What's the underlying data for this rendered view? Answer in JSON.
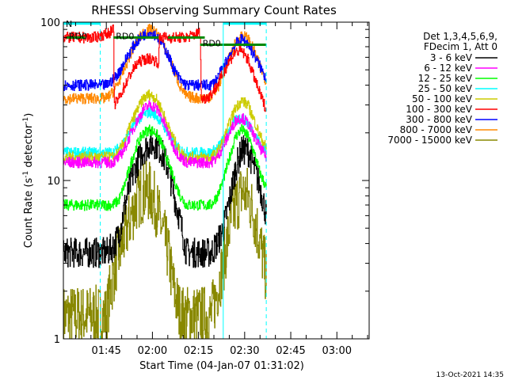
{
  "chart_data": {
    "type": "line",
    "title": "RHESSI Observing Summary Count Rates",
    "xlabel": "Start Time (04-Jan-07 01:31:02)",
    "ylabel_main": "Count Rate (s",
    "ylabel_sup": "-1",
    "ylabel_end": " detector",
    "ylabel_close": ")",
    "yscale": "log",
    "ylim": [
      1,
      100
    ],
    "xlim": [
      "01:31:02",
      "03:10:30"
    ],
    "x_ticks": [
      "01:45",
      "02:00",
      "02:15",
      "02:30",
      "02:45",
      "03:00"
    ],
    "y_ticks": [
      "1",
      "10",
      "100"
    ],
    "timestamp": "13-Oct-2021 14:35",
    "legend": {
      "placement": "right",
      "header": [
        "Det 1,3,4,5,6,9,",
        "FDecim 1, Att 0"
      ]
    },
    "series": [
      {
        "name": "3 - 6 keV",
        "color": "#000000",
        "points": [
          [
            0,
            3.5
          ],
          [
            14,
            3.5
          ],
          [
            16,
            3.8
          ],
          [
            18,
            4.5
          ],
          [
            20,
            7
          ],
          [
            22,
            10
          ],
          [
            24,
            13
          ],
          [
            26,
            15.5
          ],
          [
            28,
            17
          ],
          [
            30,
            17
          ],
          [
            32,
            15
          ],
          [
            34,
            12
          ],
          [
            36,
            8
          ],
          [
            38,
            5.5
          ],
          [
            40,
            3.5
          ],
          [
            48,
            3.5
          ],
          [
            50,
            4
          ],
          [
            52,
            5
          ],
          [
            54,
            7.5
          ],
          [
            56,
            12
          ],
          [
            58,
            15.5
          ],
          [
            60,
            15.5
          ],
          [
            62,
            12
          ],
          [
            64,
            9
          ],
          [
            66,
            6
          ]
        ]
      },
      {
        "name": "6 - 12 keV",
        "color": "#ff00ff",
        "points": [
          [
            0,
            13
          ],
          [
            16,
            13
          ],
          [
            18,
            14
          ],
          [
            20,
            16
          ],
          [
            22,
            20
          ],
          [
            24,
            24
          ],
          [
            26,
            28
          ],
          [
            28,
            30
          ],
          [
            30,
            29
          ],
          [
            32,
            25
          ],
          [
            34,
            20
          ],
          [
            36,
            16
          ],
          [
            38,
            14
          ],
          [
            40,
            13
          ],
          [
            48,
            13
          ],
          [
            50,
            14
          ],
          [
            52,
            16.5
          ],
          [
            54,
            20
          ],
          [
            56,
            24
          ],
          [
            58,
            25
          ],
          [
            60,
            23
          ],
          [
            62,
            19
          ],
          [
            64,
            16
          ],
          [
            66,
            14
          ]
        ]
      },
      {
        "name": "12 - 25 keV",
        "color": "#00ff00",
        "points": [
          [
            0,
            7
          ],
          [
            16,
            7
          ],
          [
            18,
            7.5
          ],
          [
            20,
            9.5
          ],
          [
            22,
            13
          ],
          [
            24,
            17
          ],
          [
            26,
            20
          ],
          [
            28,
            21
          ],
          [
            30,
            20
          ],
          [
            32,
            17
          ],
          [
            34,
            13
          ],
          [
            36,
            10
          ],
          [
            38,
            8
          ],
          [
            40,
            7
          ],
          [
            48,
            7
          ],
          [
            50,
            8
          ],
          [
            52,
            10
          ],
          [
            54,
            14
          ],
          [
            56,
            19
          ],
          [
            58,
            21
          ],
          [
            60,
            19
          ],
          [
            62,
            15
          ],
          [
            64,
            11
          ],
          [
            66,
            9
          ]
        ]
      },
      {
        "name": "25 - 50 keV",
        "color": "#00ffff",
        "points": [
          [
            0,
            15
          ],
          [
            16,
            15
          ],
          [
            18,
            16
          ],
          [
            20,
            18
          ],
          [
            22,
            21
          ],
          [
            24,
            24
          ],
          [
            26,
            26
          ],
          [
            28,
            27
          ],
          [
            30,
            26
          ],
          [
            32,
            23
          ],
          [
            34,
            20
          ],
          [
            36,
            17
          ],
          [
            38,
            15.5
          ],
          [
            40,
            15
          ],
          [
            48,
            15
          ],
          [
            50,
            16
          ],
          [
            52,
            18
          ],
          [
            54,
            21
          ],
          [
            56,
            24
          ],
          [
            58,
            25
          ],
          [
            60,
            23
          ],
          [
            62,
            20
          ],
          [
            64,
            17
          ],
          [
            66,
            15.5
          ]
        ]
      },
      {
        "name": "50 - 100 keV",
        "color": "#cccc00",
        "points": [
          [
            0,
            14
          ],
          [
            16,
            14
          ],
          [
            18,
            15
          ],
          [
            20,
            18
          ],
          [
            22,
            23
          ],
          [
            24,
            28
          ],
          [
            26,
            33
          ],
          [
            28,
            35
          ],
          [
            30,
            33
          ],
          [
            32,
            28
          ],
          [
            34,
            22
          ],
          [
            36,
            18
          ],
          [
            38,
            15
          ],
          [
            40,
            14
          ],
          [
            48,
            14
          ],
          [
            50,
            15
          ],
          [
            52,
            18
          ],
          [
            54,
            23
          ],
          [
            56,
            29
          ],
          [
            58,
            32
          ],
          [
            60,
            30
          ],
          [
            62,
            24
          ],
          [
            64,
            19
          ],
          [
            66,
            16
          ]
        ]
      },
      {
        "name": "100 - 300 keV",
        "color": "#ff0000",
        "points": [
          [
            0,
            80
          ],
          [
            10,
            80
          ],
          [
            13,
            83
          ],
          [
            15,
            86
          ],
          [
            16.3,
            90
          ],
          [
            16.5,
            30
          ],
          [
            18,
            33
          ],
          [
            20,
            40
          ],
          [
            22,
            48
          ],
          [
            24,
            55
          ],
          [
            26,
            58
          ],
          [
            28,
            59
          ],
          [
            30,
            57
          ],
          [
            31,
            55
          ],
          [
            31.2,
            80
          ],
          [
            34,
            80
          ],
          [
            40,
            80
          ],
          [
            43,
            84
          ],
          [
            44.5,
            86
          ],
          [
            44.8,
            33
          ],
          [
            46,
            33
          ],
          [
            48,
            35
          ],
          [
            50,
            40
          ],
          [
            52,
            48
          ],
          [
            54,
            57
          ],
          [
            56,
            65
          ],
          [
            58,
            66
          ],
          [
            60,
            58
          ],
          [
            62,
            45
          ],
          [
            64,
            35
          ],
          [
            66,
            28
          ]
        ]
      },
      {
        "name": "300 - 800 keV",
        "color": "#0000ff",
        "points": [
          [
            0,
            40
          ],
          [
            14,
            40
          ],
          [
            16,
            43
          ],
          [
            18,
            48
          ],
          [
            20,
            57
          ],
          [
            22,
            67
          ],
          [
            24,
            76
          ],
          [
            26,
            83
          ],
          [
            28,
            86
          ],
          [
            30,
            83
          ],
          [
            32,
            74
          ],
          [
            34,
            62
          ],
          [
            36,
            50
          ],
          [
            38,
            43
          ],
          [
            40,
            40
          ],
          [
            48,
            40
          ],
          [
            50,
            44
          ],
          [
            52,
            52
          ],
          [
            54,
            62
          ],
          [
            56,
            73
          ],
          [
            58,
            78
          ],
          [
            60,
            73
          ],
          [
            62,
            62
          ],
          [
            64,
            52
          ],
          [
            66,
            44
          ]
        ]
      },
      {
        "name": "800 - 7000 keV",
        "color": "#ff8800",
        "points": [
          [
            0,
            33
          ],
          [
            14,
            33
          ],
          [
            16,
            36
          ],
          [
            18,
            42
          ],
          [
            20,
            52
          ],
          [
            22,
            64
          ],
          [
            24,
            76
          ],
          [
            26,
            86
          ],
          [
            28,
            90
          ],
          [
            30,
            86
          ],
          [
            32,
            75
          ],
          [
            34,
            62
          ],
          [
            36,
            49
          ],
          [
            38,
            39
          ],
          [
            40,
            34
          ],
          [
            44,
            33
          ],
          [
            46,
            33
          ],
          [
            48,
            34
          ],
          [
            50,
            38
          ],
          [
            52,
            47
          ],
          [
            54,
            60
          ],
          [
            56,
            74
          ],
          [
            58,
            83
          ],
          [
            60,
            79
          ],
          [
            62,
            66
          ],
          [
            64,
            52
          ],
          [
            66,
            42
          ]
        ]
      },
      {
        "name": "7000 - 15000 keV",
        "color": "#888800",
        "points": [
          [
            0,
            1.4
          ],
          [
            14,
            1.4
          ],
          [
            15,
            1.9
          ],
          [
            17,
            3
          ],
          [
            20,
            4.5
          ],
          [
            22,
            6
          ],
          [
            24,
            7.5
          ],
          [
            26,
            8.5
          ],
          [
            28,
            8.5
          ],
          [
            30,
            7
          ],
          [
            32,
            5
          ],
          [
            34,
            3.5
          ],
          [
            36,
            2
          ],
          [
            38,
            1.4
          ],
          [
            48,
            1.4
          ],
          [
            50,
            2
          ],
          [
            52,
            3
          ],
          [
            54,
            5
          ],
          [
            56,
            7
          ],
          [
            58,
            8.5
          ],
          [
            60,
            8
          ],
          [
            62,
            6
          ],
          [
            64,
            4
          ],
          [
            66,
            2.5
          ]
        ]
      }
    ],
    "annotations": [
      {
        "label": "N",
        "color": "#00ffff",
        "segments": [
          [
            0,
            12
          ],
          [
            52,
            66
          ]
        ],
        "level": 98
      },
      {
        "label": "RD0",
        "color": "#008800",
        "segments": [
          [
            16.3,
            31
          ],
          [
            34,
            46
          ]
        ],
        "level": 80
      },
      {
        "label": "RD0",
        "color": "#008800",
        "segments": [
          [
            44.5,
            66
          ]
        ],
        "level": 72
      },
      {
        "label": "RD0",
        "color": "#008800",
        "segments": [
          [
            1,
            7
          ]
        ],
        "level": 80
      }
    ]
  }
}
